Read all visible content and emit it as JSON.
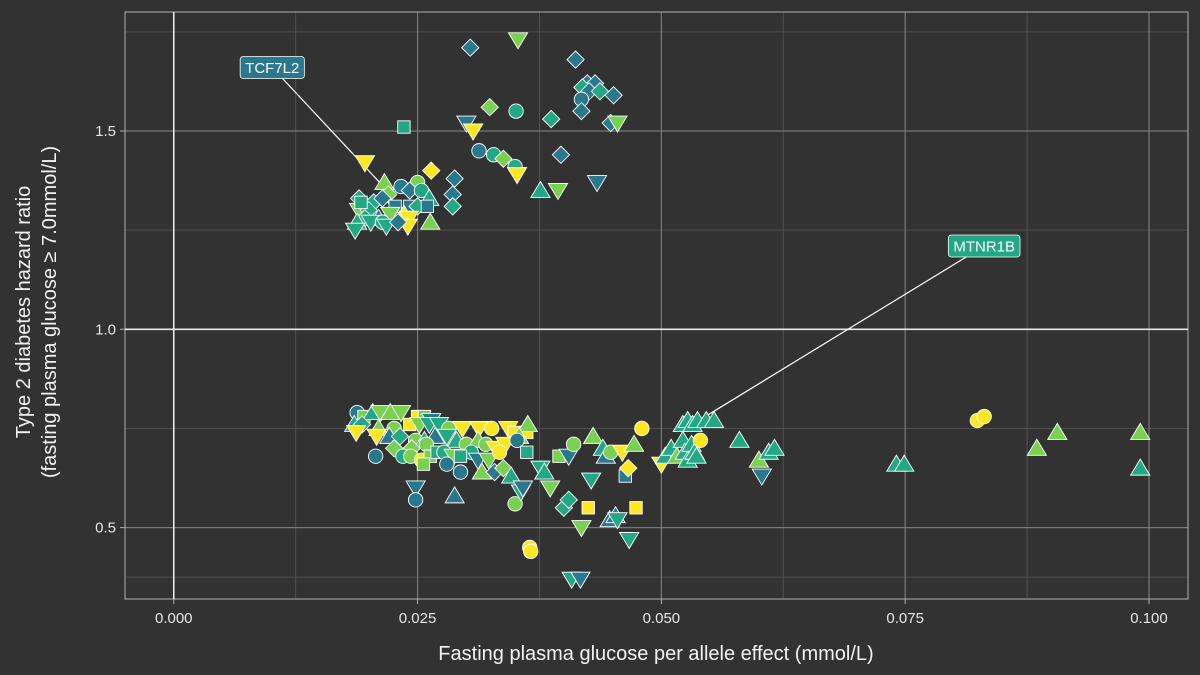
{
  "chart_data": {
    "type": "scatter",
    "xlabel": "Fasting plasma glucose per allele effect (mmol/L)",
    "ylabel_lines": [
      "Type 2 diabetes hazard ratio",
      "(fasting plasma glucose  ≥ 7.0mmol/L)"
    ],
    "xlim": [
      -0.005,
      0.104
    ],
    "ylim": [
      0.32,
      1.8
    ],
    "x_ticks": [
      0.0,
      0.025,
      0.05,
      0.075,
      0.1
    ],
    "x_tick_labels": [
      "0.000",
      "0.025",
      "0.050",
      "0.075",
      "0.100"
    ],
    "y_ticks": [
      0.5,
      1.0,
      1.5
    ],
    "y_tick_labels": [
      "0.5",
      "1.0",
      "1.5"
    ],
    "reference_lines": {
      "x": 0.0,
      "y": 1.0
    },
    "grid": true,
    "colors": {
      "background": "#323232",
      "grid_major": "#7a7a7a",
      "grid_minor": "#505050",
      "reference": "#e8e8e8",
      "palette": [
        "#2a788e",
        "#22a884",
        "#7ad151",
        "#fde725"
      ]
    },
    "annotations": [
      {
        "label": "TCF7L2",
        "x": 0.0101,
        "y": 1.66,
        "point_x": 0.0215,
        "point_y": 1.36,
        "color": "#2a788e"
      },
      {
        "label": "MTNR1B",
        "x": 0.0831,
        "y": 1.21,
        "point_x": 0.0545,
        "point_y": 0.78,
        "color": "#22a884"
      }
    ],
    "points": [
      [
        0.0304,
        1.71,
        "d",
        0
      ],
      [
        0.0353,
        1.73,
        "v",
        2
      ],
      [
        0.0412,
        1.68,
        "d",
        0
      ],
      [
        0.0424,
        1.62,
        "d",
        0
      ],
      [
        0.0432,
        1.62,
        "d",
        0
      ],
      [
        0.0419,
        1.61,
        "d",
        1
      ],
      [
        0.0426,
        1.6,
        "d",
        0
      ],
      [
        0.0437,
        1.6,
        "d",
        1
      ],
      [
        0.0451,
        1.59,
        "d",
        0
      ],
      [
        0.0418,
        1.58,
        "o",
        0
      ],
      [
        0.0324,
        1.56,
        "d",
        2
      ],
      [
        0.0351,
        1.55,
        "o",
        1
      ],
      [
        0.0387,
        1.53,
        "d",
        1
      ],
      [
        0.0418,
        1.55,
        "d",
        0
      ],
      [
        0.0448,
        1.52,
        "d",
        0
      ],
      [
        0.0455,
        1.52,
        "v",
        2
      ],
      [
        0.0236,
        1.51,
        "s",
        1
      ],
      [
        0.03,
        1.52,
        "v",
        0
      ],
      [
        0.0307,
        1.5,
        "v",
        3
      ],
      [
        0.0313,
        1.45,
        "o",
        0
      ],
      [
        0.0397,
        1.44,
        "d",
        0
      ],
      [
        0.0328,
        1.44,
        "o",
        1
      ],
      [
        0.0338,
        1.43,
        "d",
        2
      ],
      [
        0.035,
        1.41,
        "o",
        1
      ],
      [
        0.0352,
        1.39,
        "v",
        3
      ],
      [
        0.0196,
        1.42,
        "v",
        3
      ],
      [
        0.0264,
        1.4,
        "d",
        3
      ],
      [
        0.0288,
        1.38,
        "d",
        0
      ],
      [
        0.0376,
        1.35,
        "^",
        1
      ],
      [
        0.0394,
        1.35,
        "v",
        2
      ],
      [
        0.0434,
        1.37,
        "v",
        0
      ],
      [
        0.025,
        1.37,
        "o",
        2
      ],
      [
        0.0233,
        1.36,
        "o",
        0
      ],
      [
        0.0216,
        1.37,
        "^",
        2
      ],
      [
        0.0242,
        1.35,
        "d",
        0
      ],
      [
        0.0254,
        1.35,
        "o",
        1
      ],
      [
        0.0262,
        1.33,
        "^",
        1
      ],
      [
        0.0286,
        1.34,
        "d",
        0
      ],
      [
        0.022,
        1.34,
        "d",
        2
      ],
      [
        0.0205,
        1.32,
        "d",
        1
      ],
      [
        0.019,
        1.33,
        "d",
        1
      ],
      [
        0.0214,
        1.33,
        "d",
        0
      ],
      [
        0.0227,
        1.31,
        "s",
        0
      ],
      [
        0.0242,
        1.31,
        "s",
        0
      ],
      [
        0.025,
        1.31,
        "d",
        1
      ],
      [
        0.026,
        1.31,
        "s",
        0
      ],
      [
        0.0286,
        1.31,
        "d",
        1
      ],
      [
        0.019,
        1.3,
        "v",
        2
      ],
      [
        0.02,
        1.3,
        "d",
        1
      ],
      [
        0.021,
        1.28,
        "^",
        0
      ],
      [
        0.0222,
        1.29,
        "v",
        2
      ],
      [
        0.0236,
        1.29,
        "^",
        3
      ],
      [
        0.0241,
        1.28,
        "v",
        3
      ],
      [
        0.0196,
        1.28,
        "d",
        1
      ],
      [
        0.0188,
        1.27,
        "^",
        1
      ],
      [
        0.0202,
        1.27,
        "v",
        1
      ],
      [
        0.0214,
        1.27,
        "o",
        1
      ],
      [
        0.0218,
        1.26,
        "v",
        1
      ],
      [
        0.024,
        1.26,
        "v",
        3
      ],
      [
        0.0263,
        1.27,
        "^",
        2
      ],
      [
        0.0186,
        1.25,
        "v",
        1
      ],
      [
        0.023,
        1.27,
        "d",
        0
      ],
      [
        0.0192,
        1.32,
        "s",
        1
      ],
      [
        0.0188,
        0.79,
        "o",
        0
      ],
      [
        0.0195,
        0.78,
        "s",
        2
      ],
      [
        0.0204,
        0.79,
        "^",
        1
      ],
      [
        0.0212,
        0.79,
        "v",
        2
      ],
      [
        0.0222,
        0.79,
        "^",
        2
      ],
      [
        0.0233,
        0.79,
        "v",
        2
      ],
      [
        0.025,
        0.78,
        "s",
        3
      ],
      [
        0.0257,
        0.78,
        "s",
        2
      ],
      [
        0.0264,
        0.77,
        "v",
        0
      ],
      [
        0.0185,
        0.76,
        "^",
        1
      ],
      [
        0.0193,
        0.76,
        "d",
        1
      ],
      [
        0.021,
        0.75,
        "^",
        2
      ],
      [
        0.0226,
        0.75,
        "o",
        2
      ],
      [
        0.0242,
        0.76,
        "s",
        3
      ],
      [
        0.0252,
        0.76,
        "v",
        2
      ],
      [
        0.0262,
        0.76,
        "v",
        1
      ],
      [
        0.0272,
        0.76,
        "v",
        1
      ],
      [
        0.0282,
        0.75,
        "o",
        2
      ],
      [
        0.0296,
        0.75,
        "v",
        3
      ],
      [
        0.0313,
        0.75,
        "v",
        3
      ],
      [
        0.0326,
        0.75,
        "o",
        3
      ],
      [
        0.0343,
        0.75,
        "v",
        3
      ],
      [
        0.0349,
        0.74,
        "s",
        3
      ],
      [
        0.0362,
        0.74,
        "s",
        3
      ],
      [
        0.0363,
        0.76,
        "^",
        2
      ],
      [
        0.0354,
        0.73,
        "^",
        2
      ],
      [
        0.0187,
        0.74,
        "v",
        3
      ],
      [
        0.0208,
        0.73,
        "v",
        3
      ],
      [
        0.0221,
        0.73,
        "^",
        0
      ],
      [
        0.0232,
        0.73,
        "d",
        1
      ],
      [
        0.0248,
        0.72,
        "o",
        2
      ],
      [
        0.0257,
        0.72,
        "^",
        1
      ],
      [
        0.0268,
        0.73,
        "^",
        0
      ],
      [
        0.028,
        0.73,
        "v",
        1
      ],
      [
        0.029,
        0.72,
        "^",
        1
      ],
      [
        0.03,
        0.71,
        "o",
        2
      ],
      [
        0.0312,
        0.72,
        "^",
        2
      ],
      [
        0.032,
        0.71,
        "o",
        2
      ],
      [
        0.033,
        0.7,
        "v",
        3
      ],
      [
        0.034,
        0.71,
        "v",
        3
      ],
      [
        0.0352,
        0.72,
        "o",
        0
      ],
      [
        0.0259,
        0.71,
        "o",
        2
      ],
      [
        0.0244,
        0.7,
        "d",
        2
      ],
      [
        0.0226,
        0.7,
        "d",
        2
      ],
      [
        0.0207,
        0.68,
        "o",
        0
      ],
      [
        0.0235,
        0.68,
        "o",
        1
      ],
      [
        0.0243,
        0.68,
        "o",
        2
      ],
      [
        0.0254,
        0.67,
        "o",
        3
      ],
      [
        0.0263,
        0.68,
        "s",
        2
      ],
      [
        0.027,
        0.69,
        "s",
        1
      ],
      [
        0.0277,
        0.69,
        "o",
        1
      ],
      [
        0.0287,
        0.68,
        "v",
        2
      ],
      [
        0.0305,
        0.69,
        "o",
        1
      ],
      [
        0.0294,
        0.68,
        "s",
        1
      ],
      [
        0.0312,
        0.67,
        "v",
        0
      ],
      [
        0.0323,
        0.67,
        "v",
        2
      ],
      [
        0.0334,
        0.69,
        "o",
        3
      ],
      [
        0.0256,
        0.66,
        "s",
        2
      ],
      [
        0.028,
        0.66,
        "o",
        0
      ],
      [
        0.0294,
        0.64,
        "o",
        0
      ],
      [
        0.0316,
        0.64,
        "^",
        2
      ],
      [
        0.0329,
        0.64,
        "d",
        0
      ],
      [
        0.0338,
        0.65,
        "d",
        2
      ],
      [
        0.0346,
        0.63,
        "^",
        1
      ],
      [
        0.0248,
        0.6,
        "v",
        0
      ],
      [
        0.0248,
        0.57,
        "o",
        0
      ],
      [
        0.0288,
        0.58,
        "^",
        0
      ],
      [
        0.035,
        0.56,
        "o",
        2
      ],
      [
        0.0356,
        0.59,
        "v",
        1
      ],
      [
        0.0358,
        0.6,
        "v",
        0
      ],
      [
        0.0362,
        0.69,
        "s",
        1
      ],
      [
        0.0376,
        0.65,
        "v",
        1
      ],
      [
        0.038,
        0.64,
        "^",
        1
      ],
      [
        0.0386,
        0.6,
        "v",
        2
      ],
      [
        0.0395,
        0.68,
        "s",
        2
      ],
      [
        0.0405,
        0.68,
        "v",
        0
      ],
      [
        0.041,
        0.71,
        "o",
        2
      ],
      [
        0.04,
        0.55,
        "d",
        1
      ],
      [
        0.0405,
        0.57,
        "d",
        1
      ],
      [
        0.0418,
        0.5,
        "v",
        2
      ],
      [
        0.0425,
        0.55,
        "s",
        3
      ],
      [
        0.0428,
        0.62,
        "v",
        1
      ],
      [
        0.043,
        0.73,
        "^",
        2
      ],
      [
        0.044,
        0.7,
        "^",
        1
      ],
      [
        0.0443,
        0.68,
        "^",
        0
      ],
      [
        0.0448,
        0.69,
        "o",
        2
      ],
      [
        0.0447,
        0.52,
        "^",
        0
      ],
      [
        0.0453,
        0.53,
        "^",
        0
      ],
      [
        0.0455,
        0.52,
        "v",
        1
      ],
      [
        0.046,
        0.69,
        "v",
        3
      ],
      [
        0.0463,
        0.63,
        "s",
        0
      ],
      [
        0.0466,
        0.65,
        "d",
        3
      ],
      [
        0.0467,
        0.47,
        "v",
        1
      ],
      [
        0.0472,
        0.71,
        "^",
        2
      ],
      [
        0.0474,
        0.55,
        "s",
        3
      ],
      [
        0.048,
        0.75,
        "o",
        3
      ],
      [
        0.0408,
        0.37,
        "v",
        1
      ],
      [
        0.0417,
        0.37,
        "v",
        0
      ],
      [
        0.0365,
        0.45,
        "o",
        3
      ],
      [
        0.0366,
        0.44,
        "o",
        3
      ],
      [
        0.05,
        0.66,
        "v",
        3
      ],
      [
        0.0504,
        0.68,
        "^",
        1
      ],
      [
        0.051,
        0.7,
        "^",
        1
      ],
      [
        0.0516,
        0.68,
        "^",
        2
      ],
      [
        0.0522,
        0.72,
        "^",
        1
      ],
      [
        0.0524,
        0.69,
        "^",
        1
      ],
      [
        0.0527,
        0.67,
        "^",
        1
      ],
      [
        0.0531,
        0.71,
        "^",
        1
      ],
      [
        0.0534,
        0.69,
        "^",
        1
      ],
      [
        0.0536,
        0.68,
        "^",
        1
      ],
      [
        0.0522,
        0.76,
        "^",
        1
      ],
      [
        0.0527,
        0.77,
        "^",
        1
      ],
      [
        0.0532,
        0.76,
        "^",
        1
      ],
      [
        0.0537,
        0.77,
        "^",
        1
      ],
      [
        0.0546,
        0.77,
        "^",
        1
      ],
      [
        0.0554,
        0.77,
        "^",
        1
      ],
      [
        0.054,
        0.72,
        "o",
        3
      ],
      [
        0.058,
        0.72,
        "^",
        1
      ],
      [
        0.06,
        0.67,
        "^",
        2
      ],
      [
        0.0603,
        0.63,
        "v",
        0
      ],
      [
        0.061,
        0.69,
        "^",
        1
      ],
      [
        0.0616,
        0.7,
        "^",
        1
      ],
      [
        0.0741,
        0.66,
        "^",
        1
      ],
      [
        0.0749,
        0.66,
        "^",
        1
      ],
      [
        0.0824,
        0.77,
        "o",
        3
      ],
      [
        0.0831,
        0.78,
        "o",
        3
      ],
      [
        0.0885,
        0.7,
        "^",
        2
      ],
      [
        0.0906,
        0.74,
        "^",
        2
      ],
      [
        0.0991,
        0.74,
        "^",
        2
      ],
      [
        0.0991,
        0.65,
        "^",
        1
      ]
    ]
  }
}
